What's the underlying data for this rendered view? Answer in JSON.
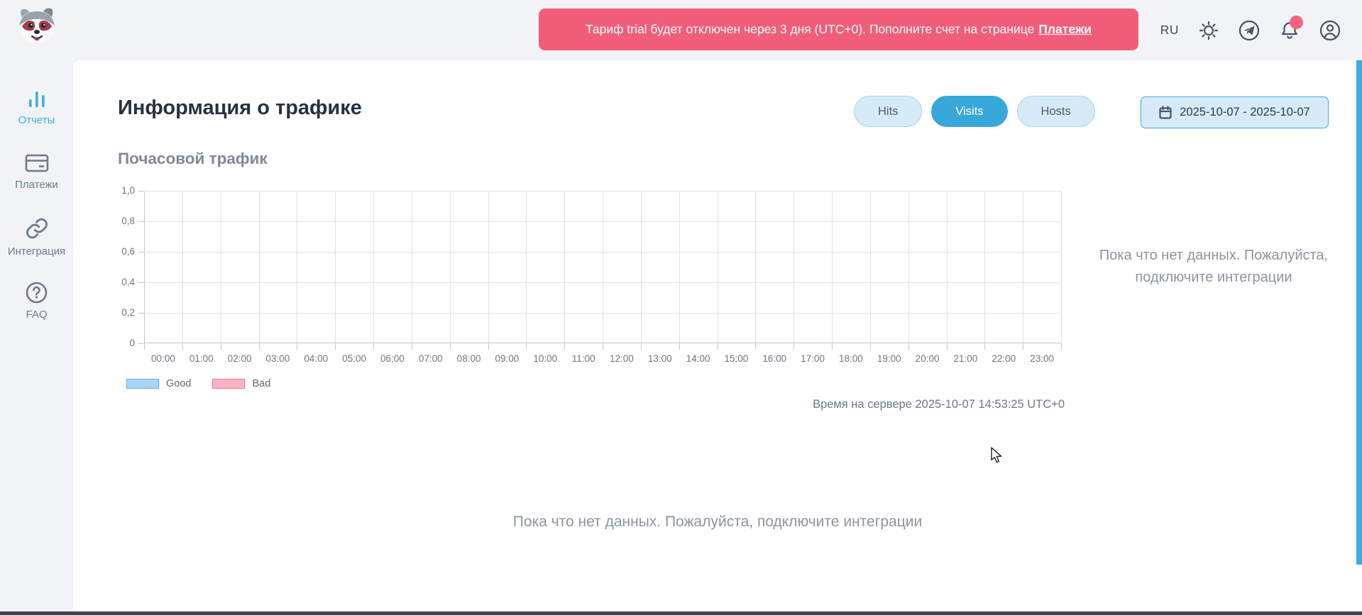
{
  "header": {
    "banner": {
      "message": "Тариф trial будет отключен через 3 дня (UTC+0). Пополните счет на странице",
      "link_label": "Платежи"
    },
    "language_label": "RU",
    "has_unread_notification_dot": true
  },
  "sidebar": {
    "items": [
      {
        "label": "Отчеты",
        "icon": "bar-chart-icon",
        "active": true
      },
      {
        "label": "Платежи",
        "icon": "credit-card-icon",
        "active": false
      },
      {
        "label": "Интеграция",
        "icon": "link-icon",
        "active": false
      },
      {
        "label": "FAQ",
        "icon": "question-circle-icon",
        "active": false
      }
    ]
  },
  "main": {
    "page_title": "Информация о трафике",
    "metric_tabs": [
      {
        "label": "Hits",
        "active": false
      },
      {
        "label": "Visits",
        "active": true
      },
      {
        "label": "Hosts",
        "active": false
      }
    ],
    "date_range": "2025-10-07 - 2025-10-07",
    "section_title": "Почасовой трафик",
    "side_empty_message": "Пока что нет данных. Пожалуйста, подключите интеграции",
    "server_time": "Время на сервере 2025-10-07 14:53:25 UTC+0",
    "bottom_empty_message": "Пока что нет данных. Пожалуйста, подключите интеграции"
  },
  "chart_data": {
    "type": "bar",
    "title": "Почасовой трафик",
    "categories": [
      "00:00",
      "01:00",
      "02:00",
      "03:00",
      "04:00",
      "05:00",
      "06:00",
      "07:00",
      "08:00",
      "09:00",
      "10:00",
      "11:00",
      "12:00",
      "13:00",
      "14:00",
      "15:00",
      "16:00",
      "17:00",
      "18:00",
      "19:00",
      "20:00",
      "21:00",
      "22:00",
      "23:00"
    ],
    "series": [
      {
        "name": "Good",
        "fill_color": "#aad4f5",
        "border_color": "#62aeea",
        "values": []
      },
      {
        "name": "Bad",
        "fill_color": "#fab3c5",
        "border_color": "#f47691",
        "values": []
      }
    ],
    "empty": true,
    "xlabel": "",
    "ylabel": "",
    "ylim": [
      0,
      1
    ],
    "y_tick_labels": [
      "0",
      "0,2",
      "0,4",
      "0,6",
      "0,8",
      "1,0"
    ],
    "grid": true,
    "legend_position": "bottom-left"
  },
  "colors": {
    "accent_blue": "#3aa9da",
    "banner_pink": "#f15e79",
    "notification_badge": "#f2647f",
    "sidebar_active_blue": "#3bafdd",
    "scrollbar_blue": "#3fabdf"
  }
}
